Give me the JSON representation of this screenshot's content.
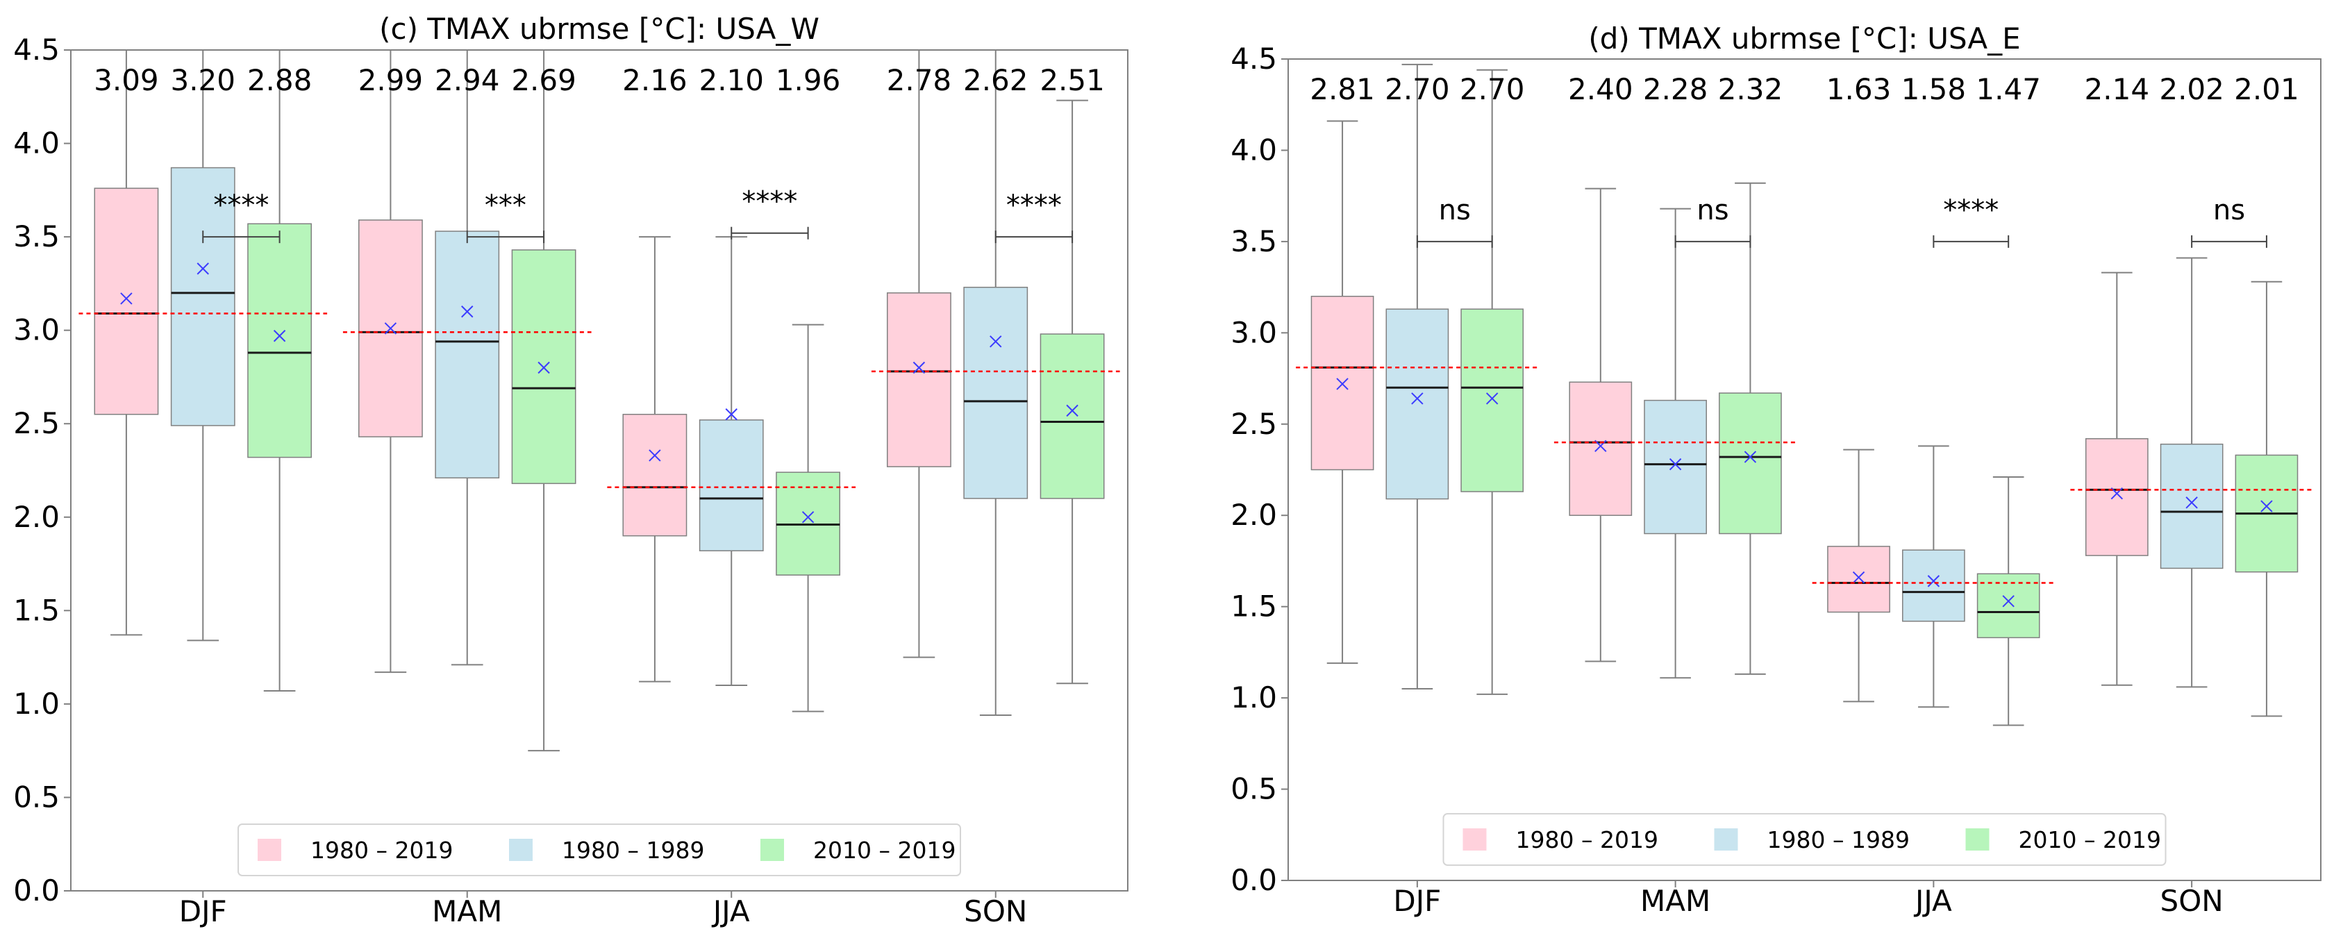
{
  "colors": {
    "period_1980_2019": "#ffd1dc",
    "period_1980_1989": "#c8e4ef",
    "period_2010_2019": "#b7f5bb",
    "median_line": "#1a1a1a",
    "mean_marker": "#3c3cff",
    "overall_median": "#ff0000",
    "whisker": "#808080",
    "axis": "#808080"
  },
  "chart_data": [
    {
      "type": "box",
      "title": "(c) TMAX ubrmse [°C]: USA_W",
      "xlabel": "",
      "ylabel": "",
      "ylim": [
        0.0,
        4.5
      ],
      "yticks": [
        "0.0",
        "0.5",
        "1.0",
        "1.5",
        "2.0",
        "2.5",
        "3.0",
        "3.5",
        "4.0",
        "4.5"
      ],
      "categories": [
        "DJF",
        "MAM",
        "JJA",
        "SON"
      ],
      "legend": {
        "position": "lower-center",
        "entries": [
          "1980 – 2019",
          "1980 – 1989",
          "2010 – 2019"
        ]
      },
      "series": [
        {
          "name": "1980 – 2019",
          "boxes": [
            {
              "whislo": 1.37,
              "q1": 2.55,
              "med": 3.09,
              "q3": 3.76,
              "whishi": 4.6,
              "mean": 3.17
            },
            {
              "whislo": 1.17,
              "q1": 2.43,
              "med": 2.99,
              "q3": 3.59,
              "whishi": 4.6,
              "mean": 3.01
            },
            {
              "whislo": 1.12,
              "q1": 1.9,
              "med": 2.16,
              "q3": 2.55,
              "whishi": 3.5,
              "mean": 2.33
            },
            {
              "whislo": 1.25,
              "q1": 2.27,
              "med": 2.78,
              "q3": 3.2,
              "whishi": 4.6,
              "mean": 2.8
            }
          ]
        },
        {
          "name": "1980 – 1989",
          "boxes": [
            {
              "whislo": 1.34,
              "q1": 2.49,
              "med": 3.2,
              "q3": 3.87,
              "whishi": 4.6,
              "mean": 3.33
            },
            {
              "whislo": 1.21,
              "q1": 2.21,
              "med": 2.94,
              "q3": 3.53,
              "whishi": 4.6,
              "mean": 3.1
            },
            {
              "whislo": 1.1,
              "q1": 1.82,
              "med": 2.1,
              "q3": 2.52,
              "whishi": 3.5,
              "mean": 2.55
            },
            {
              "whislo": 0.94,
              "q1": 2.1,
              "med": 2.62,
              "q3": 3.23,
              "whishi": 4.6,
              "mean": 2.94
            }
          ]
        },
        {
          "name": "2010 – 2019",
          "boxes": [
            {
              "whislo": 1.07,
              "q1": 2.32,
              "med": 2.88,
              "q3": 3.57,
              "whishi": 4.6,
              "mean": 2.97
            },
            {
              "whislo": 0.75,
              "q1": 2.18,
              "med": 2.69,
              "q3": 3.43,
              "whishi": 4.6,
              "mean": 2.8
            },
            {
              "whislo": 0.96,
              "q1": 1.69,
              "med": 1.96,
              "q3": 2.24,
              "whishi": 3.03,
              "mean": 2.0
            },
            {
              "whislo": 1.11,
              "q1": 2.1,
              "med": 2.51,
              "q3": 2.98,
              "whishi": 4.23,
              "mean": 2.57
            }
          ]
        }
      ],
      "median_labels": [
        [
          "3.09",
          "3.20",
          "2.88"
        ],
        [
          "2.99",
          "2.94",
          "2.69"
        ],
        [
          "2.16",
          "2.10",
          "1.96"
        ],
        [
          "2.78",
          "2.62",
          "2.51"
        ]
      ],
      "overall_median": [
        3.09,
        2.99,
        2.16,
        2.78
      ],
      "significance": [
        {
          "label": "****",
          "y": 3.5
        },
        {
          "label": "***",
          "y": 3.5
        },
        {
          "label": "****",
          "y": 3.52
        },
        {
          "label": "****",
          "y": 3.5
        }
      ]
    },
    {
      "type": "box",
      "title": "(d) TMAX ubrmse [°C]: USA_E",
      "xlabel": "",
      "ylabel": "",
      "ylim": [
        0.0,
        4.5
      ],
      "yticks": [
        "0.0",
        "0.5",
        "1.0",
        "1.5",
        "2.0",
        "2.5",
        "3.0",
        "3.5",
        "4.0",
        "4.5"
      ],
      "categories": [
        "DJF",
        "MAM",
        "JJA",
        "SON"
      ],
      "legend": {
        "position": "lower-center",
        "entries": [
          "1980 – 2019",
          "1980 – 1989",
          "2010 – 2019"
        ]
      },
      "series": [
        {
          "name": "1980 – 2019",
          "boxes": [
            {
              "whislo": 1.19,
              "q1": 2.25,
              "med": 2.81,
              "q3": 3.2,
              "whishi": 4.16,
              "mean": 2.72
            },
            {
              "whislo": 1.2,
              "q1": 2.0,
              "med": 2.4,
              "q3": 2.73,
              "whishi": 3.79,
              "mean": 2.38
            },
            {
              "whislo": 0.98,
              "q1": 1.47,
              "med": 1.63,
              "q3": 1.83,
              "whishi": 2.36,
              "mean": 1.66
            },
            {
              "whislo": 1.07,
              "q1": 1.78,
              "med": 2.14,
              "q3": 2.42,
              "whishi": 3.33,
              "mean": 2.12
            }
          ]
        },
        {
          "name": "1980 – 1989",
          "boxes": [
            {
              "whislo": 1.05,
              "q1": 2.09,
              "med": 2.7,
              "q3": 3.13,
              "whishi": 4.47,
              "mean": 2.64
            },
            {
              "whislo": 1.11,
              "q1": 1.9,
              "med": 2.28,
              "q3": 2.63,
              "whishi": 3.68,
              "mean": 2.28
            },
            {
              "whislo": 0.95,
              "q1": 1.42,
              "med": 1.58,
              "q3": 1.81,
              "whishi": 2.38,
              "mean": 1.64
            },
            {
              "whislo": 1.06,
              "q1": 1.71,
              "med": 2.02,
              "q3": 2.39,
              "whishi": 3.41,
              "mean": 2.07
            }
          ]
        },
        {
          "name": "2010 – 2019",
          "boxes": [
            {
              "whislo": 1.02,
              "q1": 2.13,
              "med": 2.7,
              "q3": 3.13,
              "whishi": 4.44,
              "mean": 2.64
            },
            {
              "whislo": 1.13,
              "q1": 1.9,
              "med": 2.32,
              "q3": 2.67,
              "whishi": 3.82,
              "mean": 2.32
            },
            {
              "whislo": 0.85,
              "q1": 1.33,
              "med": 1.47,
              "q3": 1.68,
              "whishi": 2.21,
              "mean": 1.53
            },
            {
              "whislo": 0.9,
              "q1": 1.69,
              "med": 2.01,
              "q3": 2.33,
              "whishi": 3.28,
              "mean": 2.05
            }
          ]
        }
      ],
      "median_labels": [
        [
          "2.81",
          "2.70",
          "2.70"
        ],
        [
          "2.40",
          "2.28",
          "2.32"
        ],
        [
          "1.63",
          "1.58",
          "1.47"
        ],
        [
          "2.14",
          "2.02",
          "2.01"
        ]
      ],
      "overall_median": [
        2.81,
        2.4,
        1.63,
        2.14
      ],
      "significance": [
        {
          "label": "ns",
          "y": 3.5
        },
        {
          "label": "ns",
          "y": 3.5
        },
        {
          "label": "****",
          "y": 3.5
        },
        {
          "label": "ns",
          "y": 3.5
        }
      ]
    }
  ]
}
